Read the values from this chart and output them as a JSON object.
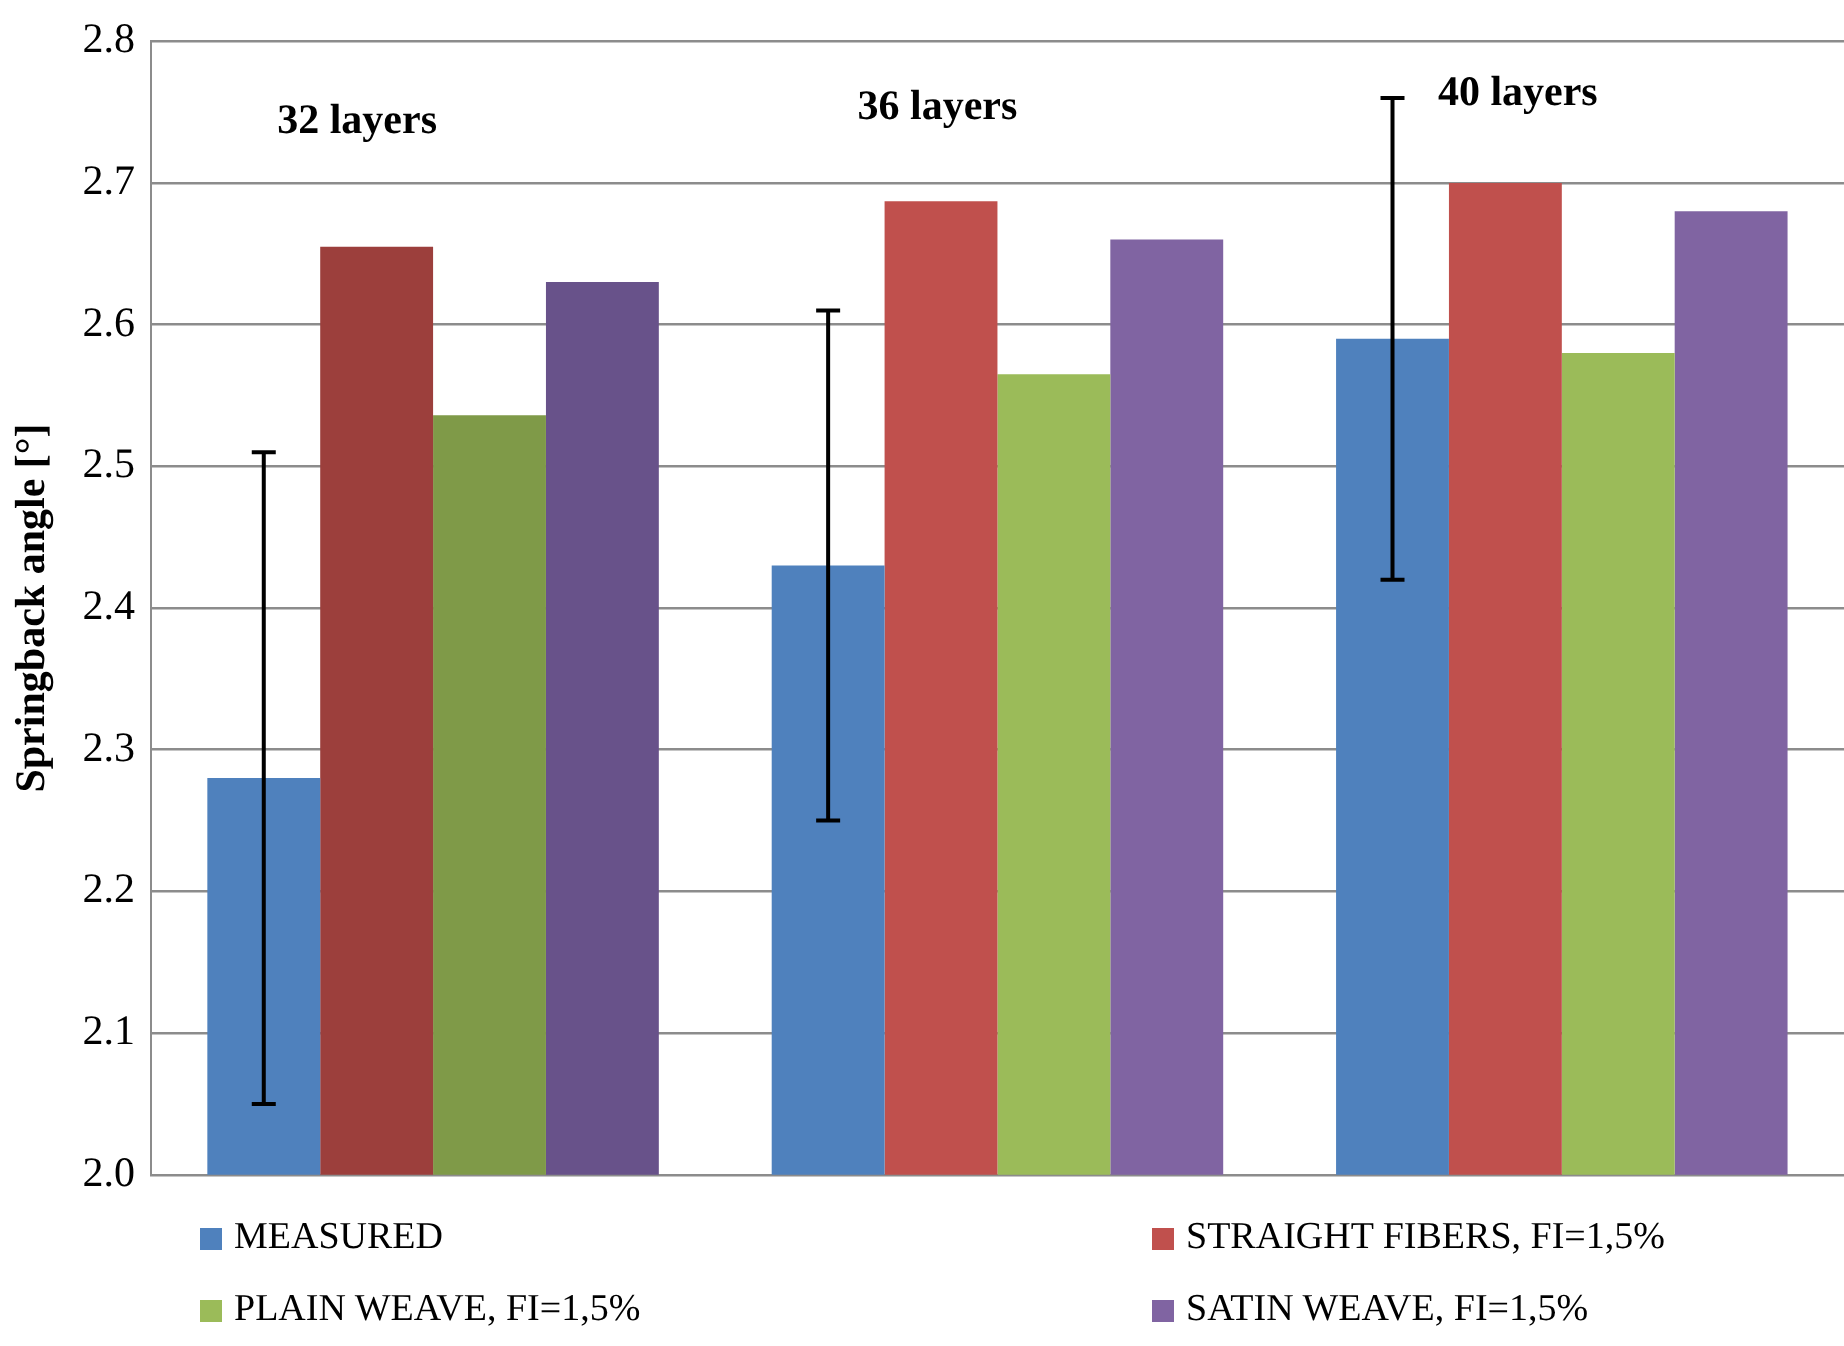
{
  "chart_data": {
    "type": "bar",
    "ylabel": "Springback angle [°]",
    "categories": [
      "32 layers",
      "36 layers",
      "40 layers"
    ],
    "series": [
      {
        "name": "MEASURED",
        "color": "#4f81bd",
        "colors": [
          "#4f81bd",
          "#4f81bd",
          "#4f81bd"
        ],
        "values": [
          2.28,
          2.43,
          2.59
        ],
        "errors": [
          [
            2.05,
            2.51
          ],
          [
            2.25,
            2.61
          ],
          [
            2.42,
            2.76
          ]
        ]
      },
      {
        "name": "STRAIGHT FIBERS, FI=1,5%",
        "color": "#c0504d",
        "colors": [
          "#9c3f3c",
          "#c0504d",
          "#c0504d"
        ],
        "values": [
          2.655,
          2.687,
          2.7
        ]
      },
      {
        "name": "PLAIN WEAVE, FI=1,5%",
        "color": "#9bbb59",
        "colors": [
          "#7f9a48",
          "#9bbb59",
          "#9bbb59"
        ],
        "values": [
          2.536,
          2.565,
          2.58
        ]
      },
      {
        "name": "SATIN WEAVE, FI=1,5%",
        "color": "#8064a2",
        "colors": [
          "#68528a",
          "#8064a2",
          "#8064a2"
        ],
        "values": [
          2.63,
          2.66,
          2.68
        ]
      }
    ],
    "ylim": [
      2.0,
      2.8
    ],
    "yticks": [
      {
        "value": 2.0,
        "label": "2.0"
      },
      {
        "value": 2.1,
        "label": "2.1"
      },
      {
        "value": 2.2,
        "label": "2.2"
      },
      {
        "value": 2.3,
        "label": "2.3"
      },
      {
        "value": 2.4,
        "label": "2.4"
      },
      {
        "value": 2.5,
        "label": "2.5"
      },
      {
        "value": 2.6,
        "label": "2.6"
      },
      {
        "value": 2.7,
        "label": "2.7"
      },
      {
        "value": 2.8,
        "label": "2.8"
      }
    ],
    "grid": "y",
    "legend": "bottom"
  }
}
